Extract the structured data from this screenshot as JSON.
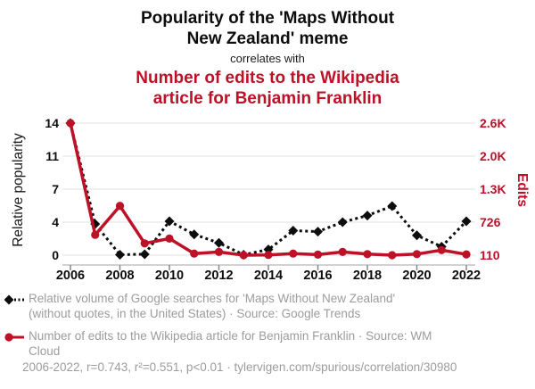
{
  "header": {
    "title_line1": "Popularity of the 'Maps Without",
    "title_line2": "New Zealand' meme",
    "connector": "correlates with",
    "subtitle_line1": "Number of edits to the Wikipedia",
    "subtitle_line2": "article for Benjamin Franklin"
  },
  "chart_data": {
    "type": "line",
    "x": [
      2006,
      2007,
      2008,
      2009,
      2010,
      2011,
      2012,
      2013,
      2014,
      2015,
      2016,
      2017,
      2018,
      2019,
      2020,
      2021,
      2022
    ],
    "x_ticks": [
      "2006",
      "2008",
      "2010",
      "2012",
      "2014",
      "2016",
      "2018",
      "2020",
      "2022"
    ],
    "left_axis": {
      "label": "Relative popularity",
      "range": [
        0,
        14
      ],
      "ticks": [
        "0",
        "4",
        "7",
        "11",
        "14"
      ]
    },
    "right_axis": {
      "label": "Edits",
      "range": [
        110,
        2576
      ],
      "ticks": [
        "110",
        "726",
        "1.3K",
        "2.0K",
        "2.6K"
      ]
    },
    "grid": true,
    "legend_position": "below",
    "series": [
      {
        "name": "Relative volume of Google searches for 'Maps Without New Zealand' (without quotes, in the United States)",
        "source": "Google Trends",
        "axis": "left",
        "color": "#0d0d0d",
        "line_style": "dotted",
        "marker": "diamond",
        "values": [
          14,
          3.3,
          0.05,
          0.1,
          3.6,
          2.2,
          1.3,
          0.05,
          0.6,
          2.6,
          2.5,
          3.5,
          4.2,
          5.2,
          2.1,
          0.9,
          3.6
        ]
      },
      {
        "name": "Number of edits to the Wikipedia article for Benjamin Franklin",
        "source": "WM Cloud",
        "axis": "right",
        "color": "#bc1127",
        "line_style": "solid",
        "marker": "circle",
        "values": [
          2576,
          490,
          1030,
          330,
          420,
          140,
          170,
          110,
          115,
          140,
          120,
          170,
          130,
          110,
          130,
          205,
          125
        ]
      }
    ]
  },
  "legend": {
    "items": [
      {
        "line1": "Relative volume of Google searches for 'Maps Without New Zealand'",
        "line2": "(without quotes, in the United States) · Source: Google Trends"
      },
      {
        "line1": "Number of edits to the Wikipedia article for Benjamin Franklin · Source: WM",
        "line2": "Cloud"
      }
    ]
  },
  "footer": {
    "text": "2006-2022, r=0.743, r²=0.551, p<0.01 · tylervigen.com/spurious/correlation/30980"
  }
}
